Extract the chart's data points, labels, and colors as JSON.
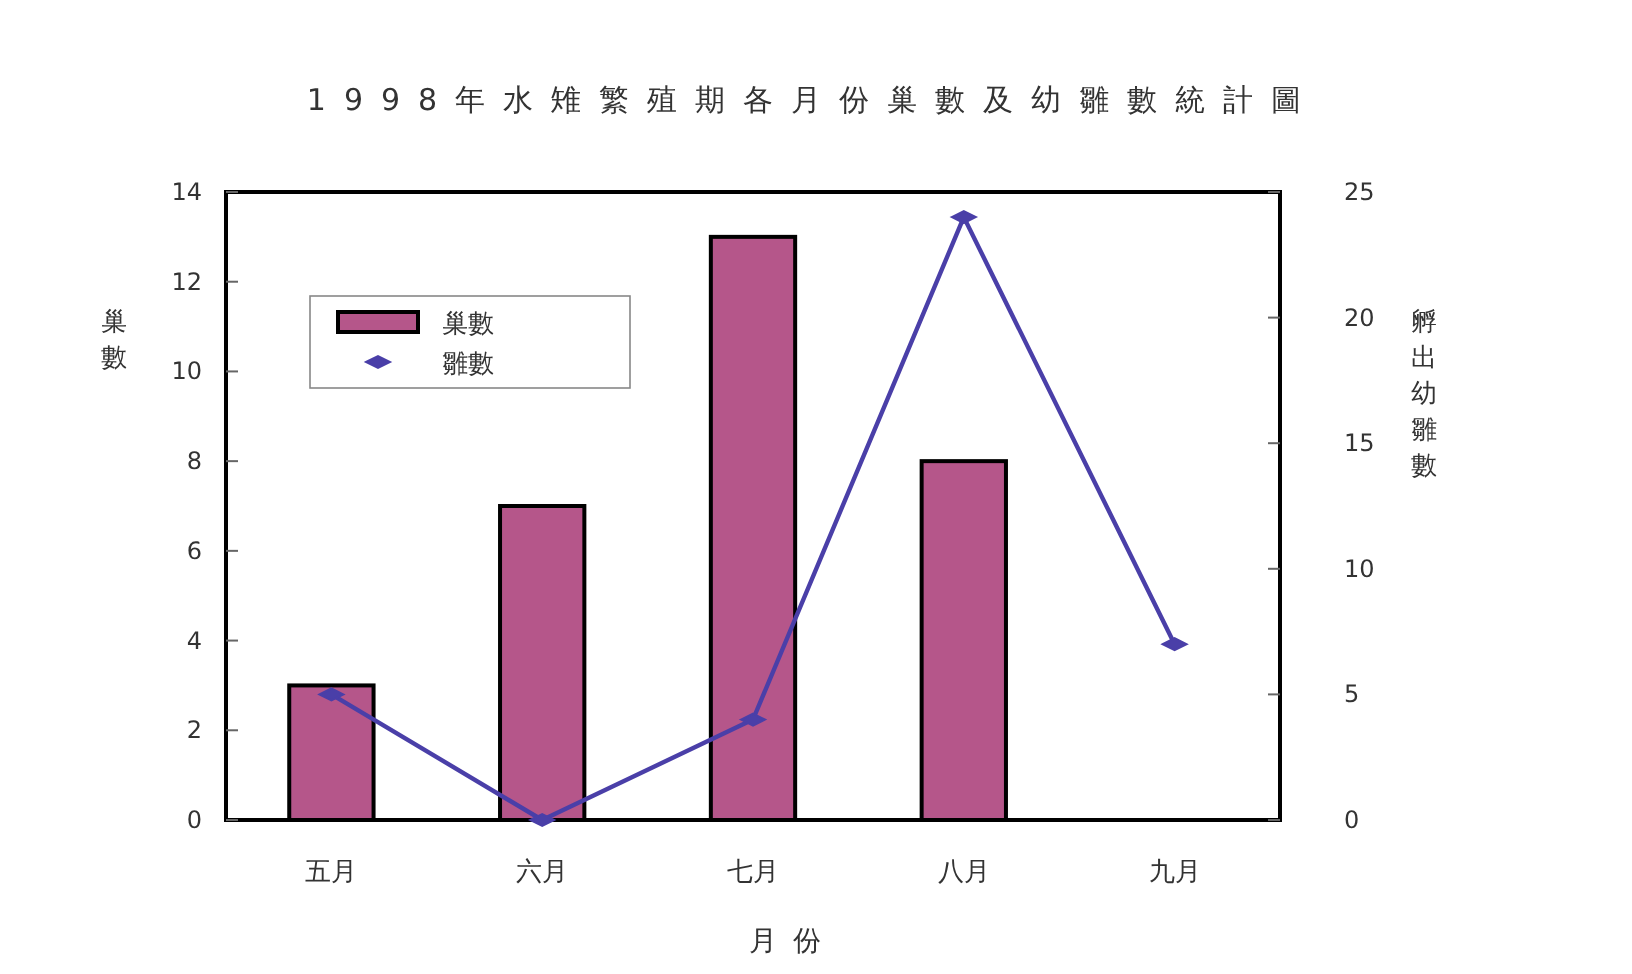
{
  "chart_data": {
    "type": "bar",
    "title": "1998年水雉繁殖期各月份巢數及幼雛數統計圖",
    "xlabel": "月份",
    "ylabel": "巢數",
    "y2label": "孵出幼雛數",
    "categories": [
      "五月",
      "六月",
      "七月",
      "八月",
      "九月"
    ],
    "series": [
      {
        "name": "巢數",
        "color": "#b5568a",
        "values": [
          3,
          7,
          13,
          8,
          null
        ]
      },
      {
        "name": "雛數",
        "type": "line",
        "axis": "y2",
        "color": "#4a3fa8",
        "marker": "diamond",
        "values": [
          5,
          0,
          4,
          24,
          7
        ]
      }
    ],
    "ylim": [
      0,
      14
    ],
    "yticks": [
      0,
      2,
      4,
      6,
      8,
      10,
      12,
      14
    ],
    "y2lim": [
      0,
      25
    ],
    "y2ticks": [
      0,
      5,
      10,
      15,
      20,
      25
    ],
    "grid": false,
    "legend": "top left"
  }
}
